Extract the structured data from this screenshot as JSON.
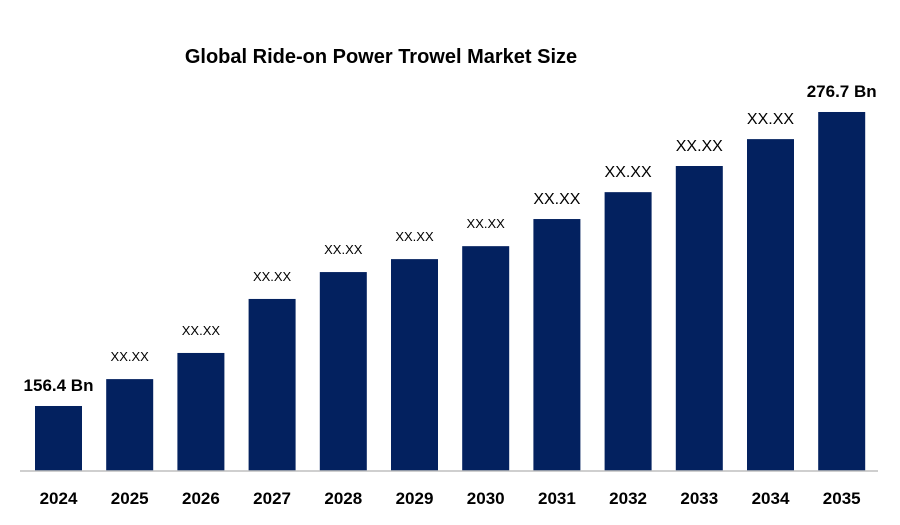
{
  "chart_data": {
    "type": "bar",
    "title": "Global Ride-on Power Trowel Market Size",
    "xlabel": "",
    "ylabel": "",
    "categories": [
      "2024",
      "2025",
      "2026",
      "2027",
      "2028",
      "2029",
      "2030",
      "2031",
      "2032",
      "2033",
      "2034",
      "2035"
    ],
    "values": [
      156.4,
      167.4,
      178.1,
      200.2,
      211.2,
      216.5,
      221.8,
      232.9,
      243.9,
      254.6,
      265.6,
      276.7
    ],
    "data_labels": [
      "156.4 Bn",
      "XX.XX",
      "XX.XX",
      "XX.XX",
      "XX.XX",
      "XX.XX",
      "XX.XX",
      "XX.XX",
      "XX.XX",
      "XX.XX",
      "XX.XX",
      "276.7 Bn"
    ],
    "ylim": [
      129.8,
      290
    ],
    "y_axis_visible": false,
    "grid": false,
    "legend": "none",
    "bar_color": "#03215F",
    "axis_color": "#BFBFBF"
  }
}
